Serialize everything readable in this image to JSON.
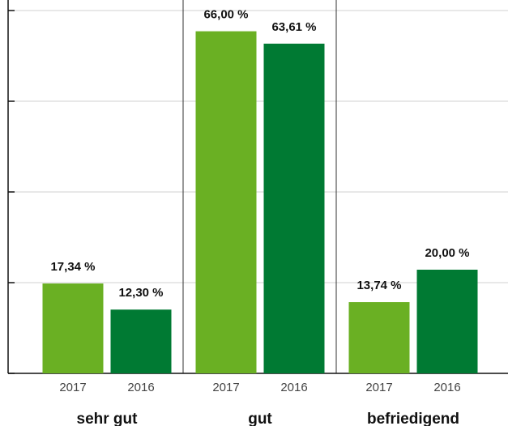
{
  "chart_data": {
    "type": "bar",
    "categories": [
      "sehr gut",
      "gut",
      "befriedigend"
    ],
    "series": [
      {
        "name": "2017",
        "color": "#6ab023",
        "values": [
          17.34,
          66.0,
          13.74
        ],
        "value_labels": [
          "17,34 %",
          "66,00 %",
          "13,74 %"
        ]
      },
      {
        "name": "2016",
        "color": "#007a33",
        "values": [
          12.3,
          63.61,
          20.0
        ],
        "value_labels": [
          "12,30 %",
          "63,61 %",
          "20,00 %"
        ]
      }
    ],
    "ylim": [
      0,
      70
    ],
    "yticks": [
      0,
      17.5,
      35,
      52.5,
      70
    ],
    "grid": true
  }
}
